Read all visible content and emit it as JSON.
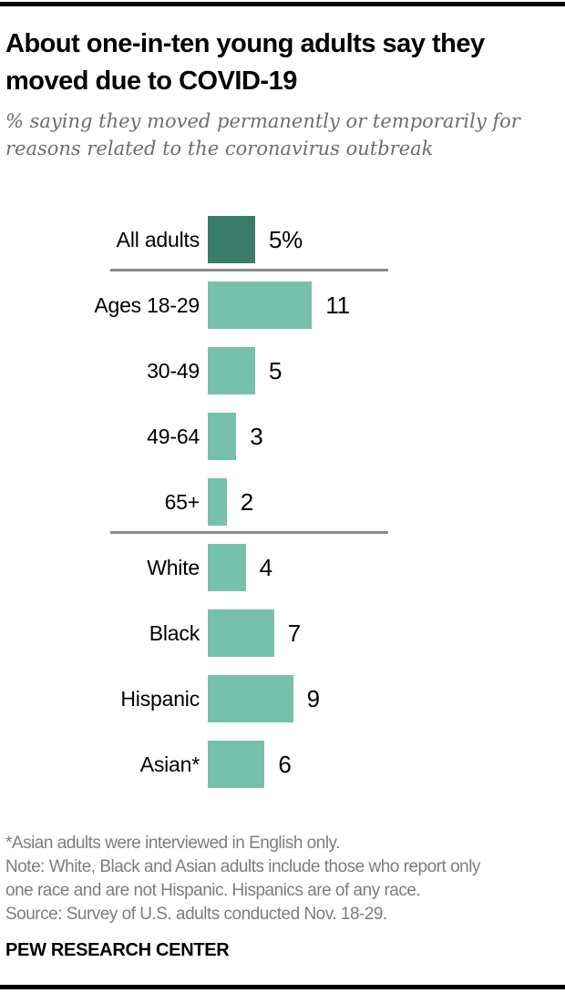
{
  "brand_colors": {
    "dark_teal": "#3a7c6a",
    "light_teal": "#77c1ac",
    "separator_gray": "#8a8a8a",
    "rule_black": "#000000",
    "subtitle_gray": "#6e6e6e",
    "footnote_gray": "#7d7d7d"
  },
  "header": {
    "title": "About one-in-ten young adults say they moved due to COVID-19",
    "title_lines": [
      "About one-in-ten young adults say they",
      "moved due to COVID-19"
    ],
    "subtitle": "% saying they moved permanently or temporarily for reasons related to the coronavirus outbreak",
    "subtitle_lines": [
      "% saying they moved permanently or temporarily for",
      "reasons related to the coronavirus outbreak"
    ]
  },
  "chart_data": {
    "type": "bar",
    "orientation": "horizontal",
    "unit": "percent of U.S. adults",
    "categories": [
      "All adults",
      "Ages 18-29",
      "30-49",
      "49-64",
      "65+",
      "White",
      "Black",
      "Hispanic",
      "Asian*"
    ],
    "values": [
      5,
      11,
      5,
      3,
      2,
      4,
      7,
      9,
      6
    ],
    "value_labels": [
      "5%",
      "11",
      "5",
      "3",
      "2",
      "4",
      "7",
      "9",
      "6"
    ],
    "bar_colors": [
      "#3a7c6a",
      "#77c1ac",
      "#77c1ac",
      "#77c1ac",
      "#77c1ac",
      "#77c1ac",
      "#77c1ac",
      "#77c1ac",
      "#77c1ac"
    ],
    "separators_after_index": [
      0,
      4
    ],
    "groups": [
      {
        "members": [
          "All adults"
        ]
      },
      {
        "members": [
          "Ages 18-29",
          "30-49",
          "49-64",
          "65+"
        ]
      },
      {
        "members": [
          "White",
          "Black",
          "Hispanic",
          "Asian*"
        ]
      }
    ],
    "grid": false,
    "legend": false,
    "axis_shown": false
  },
  "footer": {
    "lines": [
      "*Asian adults were interviewed in English only.",
      "Note: White, Black and Asian adults include those who report only",
      "one race and are not Hispanic. Hispanics are of any race.",
      "Source: Survey of U.S. adults conducted Nov. 18-29."
    ],
    "brand": "PEW RESEARCH CENTER"
  }
}
